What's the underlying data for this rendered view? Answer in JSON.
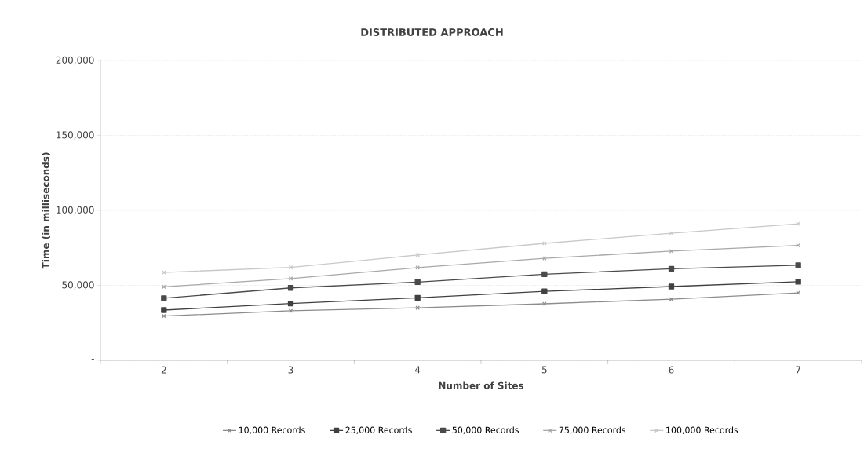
{
  "chart_data": {
    "type": "line",
    "title": "DISTRIBUTED APPROACH",
    "xlabel": "Number of Sites",
    "ylabel": "Time (in milliseconds)",
    "categories": [
      "2",
      "3",
      "4",
      "5",
      "6",
      "7"
    ],
    "series": [
      {
        "name": "10,000 Records",
        "color": "#8c8c8c",
        "marker": "cross",
        "values": [
          29500,
          33000,
          35000,
          37700,
          40800,
          45000
        ]
      },
      {
        "name": "25,000 Records",
        "color": "#404040",
        "marker": "square",
        "values": [
          33500,
          37900,
          41700,
          46000,
          49200,
          52400
        ]
      },
      {
        "name": "50,000 Records",
        "color": "#4a4a4a",
        "marker": "square",
        "values": [
          41400,
          48300,
          52200,
          57400,
          61100,
          63400
        ]
      },
      {
        "name": "75,000 Records",
        "color": "#a8a8a8",
        "marker": "cross",
        "values": [
          49000,
          54500,
          61800,
          68000,
          72800,
          76600
        ]
      },
      {
        "name": "100,000 Records",
        "color": "#c8c8c8",
        "marker": "cross",
        "values": [
          58600,
          62000,
          70200,
          78000,
          84800,
          91000
        ]
      }
    ],
    "ylim": [
      0,
      200000
    ],
    "yticks": [
      {
        "value": 0,
        "label": "-"
      },
      {
        "value": 50000,
        "label": "50,000"
      },
      {
        "value": 100000,
        "label": "100,000"
      },
      {
        "value": 150000,
        "label": "150,000"
      },
      {
        "value": 200000,
        "label": "200,000"
      }
    ],
    "grid": "y",
    "legend": "bottom"
  }
}
